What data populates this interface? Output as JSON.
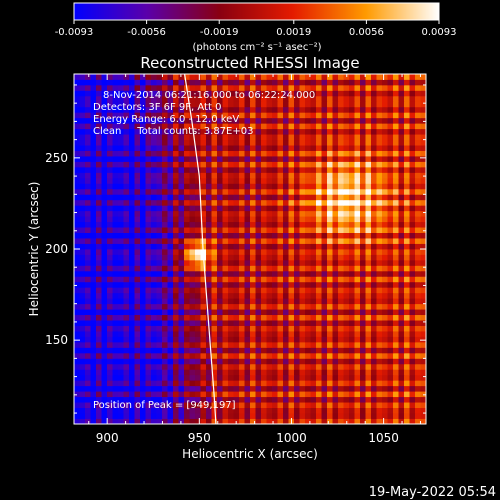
{
  "chart_data": {
    "type": "heatmap",
    "title": "Reconstructed RHESSI Image",
    "xlabel": "Heliocentric X (arcsec)",
    "ylabel": "Heliocentric Y (arcsec)",
    "xlim": [
      882,
      1073
    ],
    "ylim": [
      104,
      296
    ],
    "x_ticks": [
      900,
      950,
      1000,
      1050
    ],
    "y_ticks": [
      150,
      200,
      250
    ],
    "colorbar": {
      "min": -0.0093,
      "max": 0.0093,
      "ticks": [
        "-0.0093",
        "-0.0056",
        "-0.0019",
        "0.0019",
        "0.0056",
        "0.0093"
      ],
      "unit_label": "(photons cm⁻² s⁻¹ asec⁻²)",
      "colormap": [
        "#0000ff",
        "#5a00aa",
        "#8a0010",
        "#e41b00",
        "#ff9a00",
        "#ffffff"
      ]
    },
    "annotations": [
      "8-Nov-2014 06:21:16.000 to 06:22:24.000",
      "Detectors: 3F 6F 9F, Att 0",
      "Energy Range: 6.0 - 12.0 keV",
      "Clean     Total counts: 3.87E+03"
    ],
    "peak_label": "Position of Peak = [949,197]",
    "peak": [
      949,
      197
    ],
    "secondary_source": [
      1030,
      228
    ],
    "limb_curve": [
      [
        942,
        296
      ],
      [
        946,
        270
      ],
      [
        950,
        240
      ],
      [
        952,
        200
      ],
      [
        955,
        160
      ],
      [
        958,
        120
      ],
      [
        959,
        104
      ]
    ]
  },
  "footer": {
    "timestamp": "19-May-2022 05:54"
  }
}
